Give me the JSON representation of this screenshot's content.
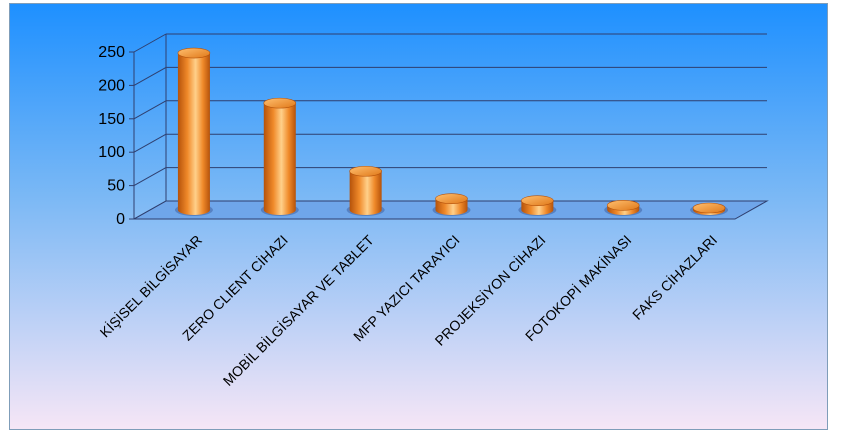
{
  "chart_data": {
    "type": "bar",
    "style": "3d-cylinder",
    "categories": [
      "KİŞİSEL BİLGİSAYAR",
      "ZERO CLIENT CİHAZI",
      "MOBİL BİLGİSAYAR VE TABLET",
      "MFP YAZICI TARAYICI",
      "PROJEKSİYON CİHAZI",
      "FOTOKOPİ MAKİNASI",
      "FAKS CİHAZLARI"
    ],
    "values": [
      235,
      160,
      58,
      17,
      14,
      7,
      3
    ],
    "ylim": [
      0,
      250
    ],
    "yticks": [
      0,
      50,
      100,
      150,
      200,
      250
    ],
    "grid": true,
    "legend": "none",
    "title": "",
    "xlabel": "",
    "ylabel": ""
  },
  "colors": {
    "bar": "#f08a2a",
    "bar_light": "#ffd08a",
    "bar_dark": "#b5520a",
    "background_top": "#1e90ff",
    "background_bottom": "#f6e6f6",
    "gridline": "#2f3f6f"
  }
}
